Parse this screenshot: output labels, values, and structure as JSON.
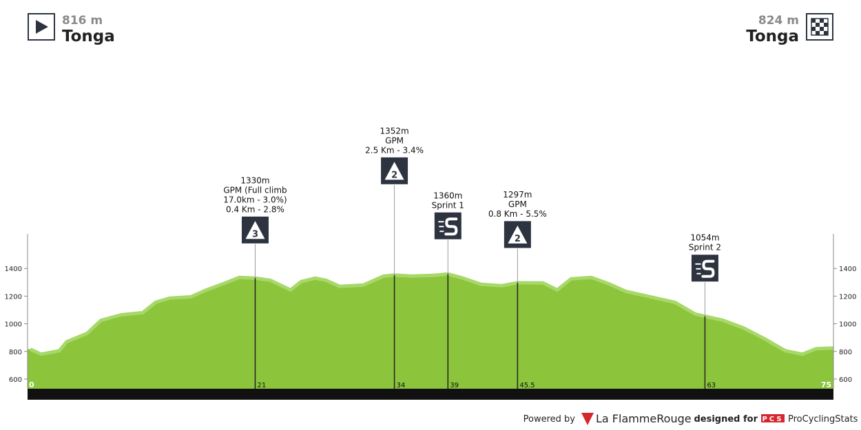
{
  "chart_data": {
    "type": "profile",
    "start": {
      "elevation_label": "816 m",
      "name": "Tonga"
    },
    "finish": {
      "elevation_label": "824 m",
      "name": "Tonga"
    },
    "x": [
      0,
      1,
      2.7,
      3.4,
      5.3,
      6.6,
      8.5,
      10.5,
      11.7,
      13,
      15,
      16.3,
      18.2,
      19.5,
      21,
      22.4,
      24.3,
      25.3,
      26.6,
      27.6,
      28.9,
      31.1,
      33,
      34,
      35.6,
      37.6,
      39,
      40.2,
      42.1,
      44,
      45.5,
      47.9,
      49.2,
      50.5,
      52.4,
      54,
      55.6,
      57.9,
      60.2,
      62.1,
      63,
      64.7,
      66.6,
      68.6,
      70.5,
      72.1,
      73.4,
      75
    ],
    "values": [
      816,
      780,
      805,
      870,
      930,
      1025,
      1065,
      1080,
      1155,
      1185,
      1195,
      1240,
      1295,
      1335,
      1330,
      1315,
      1245,
      1305,
      1330,
      1315,
      1270,
      1280,
      1345,
      1352,
      1345,
      1350,
      1360,
      1335,
      1285,
      1275,
      1297,
      1295,
      1245,
      1325,
      1335,
      1290,
      1235,
      1195,
      1155,
      1070,
      1054,
      1025,
      970,
      890,
      805,
      780,
      820,
      824
    ],
    "color": "#8cc43c",
    "edge_color": "#a8d86a",
    "xlim": [
      0,
      75
    ],
    "xticks": [
      0,
      75
    ],
    "ylim": [
      530,
      1650
    ],
    "yticks": [
      600,
      800,
      1000,
      1200,
      1400
    ],
    "markers": [
      {
        "km": 21,
        "elevation": 1330,
        "kind": "climb",
        "category": "3",
        "lines": [
          "1330m",
          "GPM (Full climb",
          "17.0km - 3.0%)",
          "0.4 Km - 2.8%"
        ]
      },
      {
        "km": 34,
        "elevation": 1352,
        "kind": "climb",
        "category": "2",
        "lines": [
          "1352m",
          "GPM",
          "2.5 Km - 3.4%"
        ]
      },
      {
        "km": 39,
        "elevation": 1360,
        "kind": "sprint",
        "lines": [
          "1360m",
          "Sprint 1"
        ]
      },
      {
        "km": 45.5,
        "elevation": 1297,
        "kind": "climb",
        "category": "2",
        "lines": [
          "1297m",
          "GPM",
          "0.8 Km - 5.5%"
        ]
      },
      {
        "km": 63,
        "elevation": 1054,
        "kind": "sprint",
        "lines": [
          "1054m",
          "Sprint 2"
        ]
      }
    ],
    "footer": {
      "powered": "Powered by",
      "brand": "La FlammeRouge",
      "designed": "designed for",
      "pcs": "PCS",
      "site": "ProCyclingStats"
    }
  }
}
